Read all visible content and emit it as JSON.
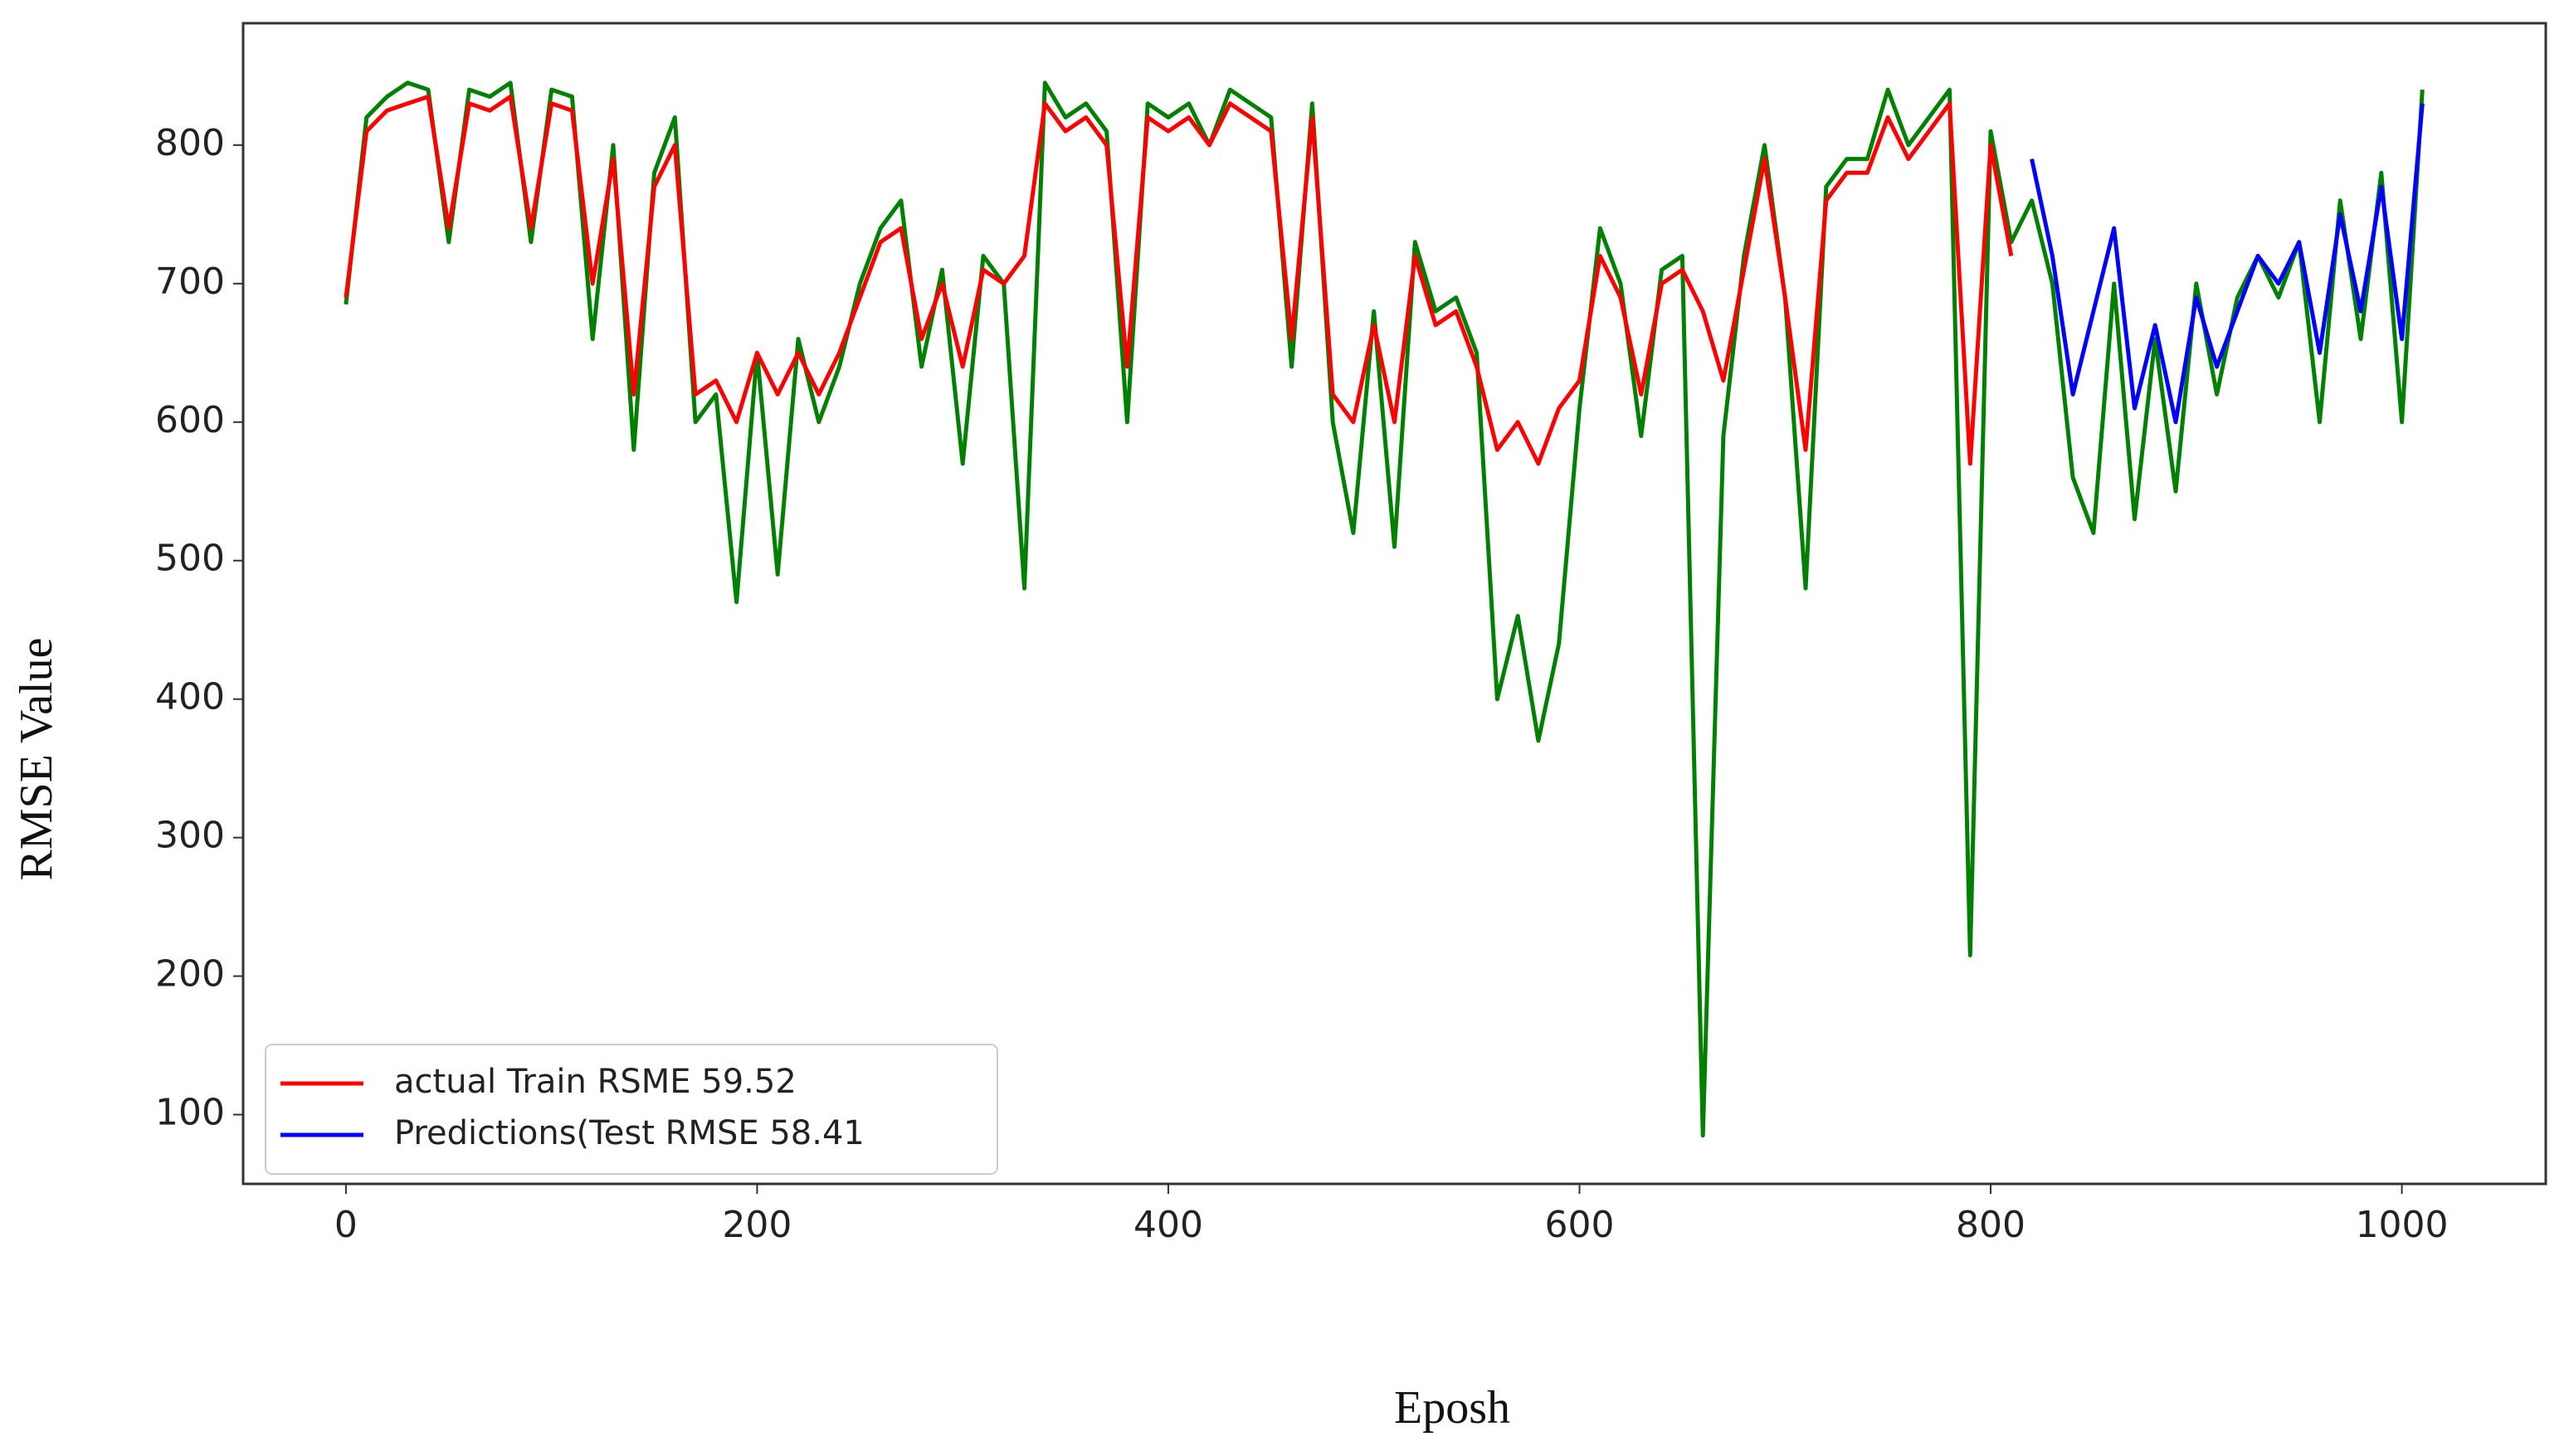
{
  "chart_data": {
    "type": "line",
    "x_label": "Eposh",
    "y_label": "RMSE Value",
    "xlim": [
      -50,
      1070
    ],
    "ylim": [
      50,
      888
    ],
    "xticks": [
      0,
      200,
      400,
      600,
      800,
      1000
    ],
    "yticks": [
      100,
      200,
      300,
      400,
      500,
      600,
      700,
      800
    ],
    "legend": "lower left",
    "x": [
      0,
      10,
      20,
      30,
      40,
      50,
      60,
      70,
      80,
      90,
      100,
      110,
      120,
      130,
      140,
      150,
      160,
      170,
      180,
      190,
      200,
      210,
      220,
      230,
      240,
      250,
      260,
      270,
      280,
      290,
      300,
      310,
      320,
      330,
      340,
      350,
      360,
      370,
      380,
      390,
      400,
      410,
      420,
      430,
      440,
      450,
      460,
      470,
      480,
      490,
      500,
      510,
      520,
      530,
      540,
      550,
      560,
      570,
      580,
      590,
      600,
      610,
      620,
      630,
      640,
      650,
      660,
      670,
      680,
      690,
      700,
      710,
      720,
      730,
      740,
      750,
      760,
      770,
      780,
      790,
      800,
      810,
      820,
      830,
      840,
      850,
      860,
      870,
      880,
      890,
      900,
      910,
      920,
      930,
      940,
      950,
      960,
      970,
      980,
      990,
      1000,
      1010
    ],
    "series": [
      {
        "color": "#008000",
        "values": [
          685,
          820,
          835,
          845,
          840,
          730,
          840,
          835,
          845,
          730,
          840,
          835,
          660,
          800,
          580,
          780,
          820,
          600,
          620,
          470,
          650,
          490,
          660,
          600,
          640,
          700,
          740,
          760,
          640,
          710,
          570,
          720,
          700,
          480,
          845,
          820,
          830,
          810,
          600,
          830,
          820,
          830,
          800,
          840,
          830,
          820,
          640,
          830,
          600,
          520,
          680,
          510,
          730,
          680,
          690,
          650,
          400,
          460,
          370,
          440,
          610,
          740,
          700,
          590,
          710,
          720,
          85,
          590,
          720,
          800,
          690,
          480,
          770,
          790,
          790,
          840,
          800,
          820,
          840,
          215,
          810,
          730,
          760,
          700,
          560,
          520,
          700,
          530,
          660,
          550,
          700,
          620,
          690,
          720,
          690,
          730,
          600,
          760,
          660,
          780,
          600,
          840
        ]
      },
      {
        "name": "actual Train RSME 59.52",
        "color": "#ff0000",
        "values": [
          690,
          810,
          825,
          830,
          835,
          740,
          830,
          825,
          835,
          740,
          830,
          825,
          700,
          790,
          620,
          770,
          800,
          620,
          630,
          600,
          650,
          620,
          650,
          620,
          650,
          690,
          730,
          740,
          660,
          700,
          640,
          710,
          700,
          720,
          830,
          810,
          820,
          800,
          640,
          820,
          810,
          820,
          800,
          830,
          820,
          810,
          660,
          820,
          620,
          600,
          670,
          600,
          720,
          670,
          680,
          640,
          580,
          600,
          570,
          610,
          630,
          720,
          690,
          620,
          700,
          710,
          680,
          630,
          710,
          790,
          690,
          580,
          760,
          780,
          780,
          820,
          790,
          810,
          830,
          570,
          800,
          720,
          null,
          null,
          null,
          null,
          null,
          null,
          null,
          null,
          null,
          null,
          null,
          null,
          null,
          null,
          null,
          null,
          null,
          null,
          null,
          null
        ]
      },
      {
        "name": "Predictions(Test RMSE 58.41",
        "color": "#0000ff",
        "values": [
          null,
          null,
          null,
          null,
          null,
          null,
          null,
          null,
          null,
          null,
          null,
          null,
          null,
          null,
          null,
          null,
          null,
          null,
          null,
          null,
          null,
          null,
          null,
          null,
          null,
          null,
          null,
          null,
          null,
          null,
          null,
          null,
          null,
          null,
          null,
          null,
          null,
          null,
          null,
          null,
          null,
          null,
          null,
          null,
          null,
          null,
          null,
          null,
          null,
          null,
          null,
          null,
          null,
          null,
          null,
          null,
          null,
          null,
          null,
          null,
          null,
          null,
          null,
          null,
          null,
          null,
          null,
          null,
          null,
          null,
          null,
          null,
          null,
          null,
          null,
          null,
          null,
          null,
          null,
          null,
          null,
          null,
          790,
          720,
          620,
          680,
          740,
          610,
          670,
          600,
          690,
          640,
          680,
          720,
          700,
          730,
          650,
          750,
          680,
          770,
          660,
          830
        ]
      }
    ]
  }
}
